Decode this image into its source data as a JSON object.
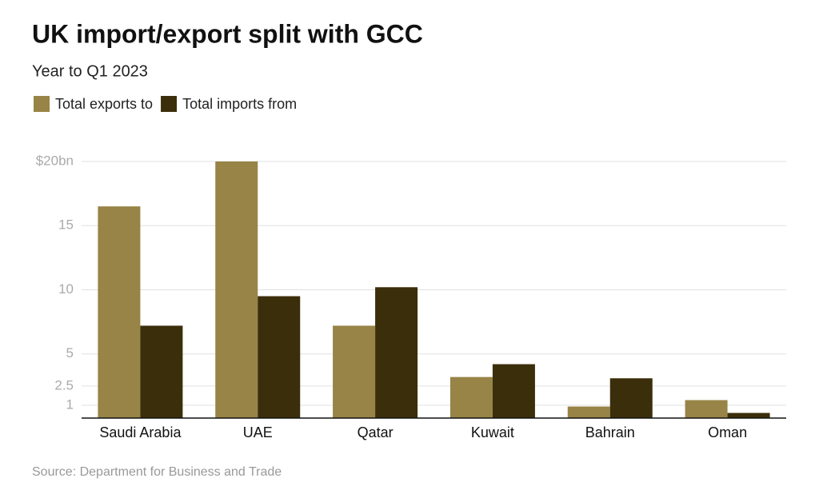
{
  "chart_data": {
    "type": "bar",
    "title": "UK import/export split with GCC",
    "subtitle": "Year to Q1 2023",
    "source": "Source: Department for Business and Trade",
    "categories": [
      "Saudi Arabia",
      "UAE",
      "Qatar",
      "Kuwait",
      "Bahrain",
      "Oman"
    ],
    "series": [
      {
        "name": "Total exports to",
        "color": "#978446",
        "values": [
          16.5,
          20,
          7.2,
          3.2,
          0.9,
          1.4
        ]
      },
      {
        "name": "Total imports from",
        "color": "#3b2e0a",
        "values": [
          7.2,
          9.5,
          10.2,
          4.2,
          3.1,
          0.4
        ]
      }
    ],
    "ylim": [
      0,
      20
    ],
    "yticks": [
      1,
      2.5,
      5,
      10,
      15,
      {
        "value": 20,
        "label": "$20bn"
      }
    ],
    "grid": true,
    "legend": "top-left"
  }
}
